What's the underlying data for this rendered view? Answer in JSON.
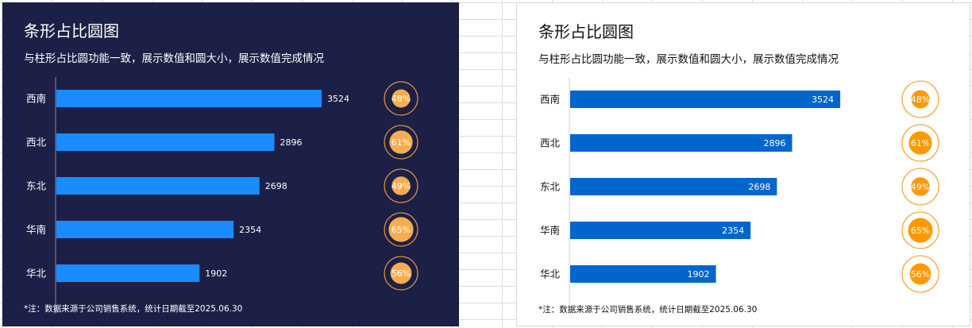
{
  "chart_data": [
    {
      "type": "bar",
      "orientation": "horizontal",
      "theme": "dark",
      "title": "条形占比圆图",
      "subtitle": "与柱形占比圆功能一致，展示数值和圆大小，展示数值完成情况",
      "categories": [
        "西南",
        "西北",
        "东北",
        "华南",
        "华北"
      ],
      "values": [
        3524,
        2896,
        2698,
        2354,
        1902
      ],
      "percent_labels": [
        "48%",
        "61%",
        "49%",
        "65%",
        "56%"
      ],
      "percents": [
        48,
        61,
        49,
        65,
        56
      ],
      "footnote": "*注：数据来源于公司销售系统，统计日期截至2025.06.30",
      "colors": {
        "bg": "#1c1f46",
        "bar": "#1a8cff",
        "circle": "#f7ad4f",
        "ring": "#d9923a",
        "text": "#ffffff"
      }
    },
    {
      "type": "bar",
      "orientation": "horizontal",
      "theme": "light",
      "title": "条形占比圆图",
      "subtitle": "与柱形占比圆功能一致，展示数值和圆大小，展示数值完成情况",
      "categories": [
        "西南",
        "西北",
        "东北",
        "华南",
        "华北"
      ],
      "values": [
        3524,
        2896,
        2698,
        2354,
        1902
      ],
      "percent_labels": [
        "48%",
        "61%",
        "49%",
        "65%",
        "56%"
      ],
      "percents": [
        48,
        61,
        49,
        65,
        56
      ],
      "footnote": "*注：数据来源于公司销售系统，统计日期截至2025.06.30",
      "colors": {
        "bg": "#ffffff",
        "bar": "#0066cc",
        "circle": "#ff9900",
        "ring": "#f5a83a",
        "text": "#111111"
      }
    }
  ]
}
